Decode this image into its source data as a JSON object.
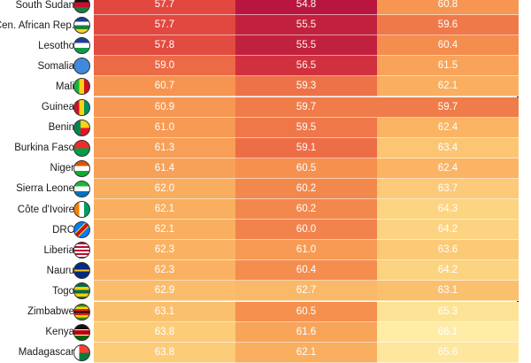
{
  "chart_data": {
    "type": "table",
    "rows": [
      {
        "country": "South Sudan",
        "values": [
          "57.7",
          "54.8",
          "60.8"
        ],
        "flag": "south-sudan-flag"
      },
      {
        "country": "Cen. African Rep.",
        "values": [
          "57.7",
          "55.5",
          "59.6"
        ],
        "flag": "car-flag"
      },
      {
        "country": "Lesotho",
        "values": [
          "57.8",
          "55.5",
          "60.4"
        ],
        "flag": "lesotho-flag"
      },
      {
        "country": "Somalia",
        "values": [
          "59.0",
          "56.5",
          "61.5"
        ],
        "flag": "somalia-flag"
      },
      {
        "country": "Mali",
        "values": [
          "60.7",
          "59.3",
          "62.1"
        ],
        "flag": "mali-flag"
      },
      {
        "country": "Guinea",
        "values": [
          "60.9",
          "59.7",
          "59.7"
        ],
        "flag": "guinea-flag"
      },
      {
        "country": "Benin",
        "values": [
          "61.0",
          "59.5",
          "62.4"
        ],
        "flag": "benin-flag"
      },
      {
        "country": "Burkina Faso",
        "values": [
          "61.3",
          "59.1",
          "63.4"
        ],
        "flag": "burkina-faso-flag"
      },
      {
        "country": "Niger",
        "values": [
          "61.4",
          "60.5",
          "62.4"
        ],
        "flag": "niger-flag"
      },
      {
        "country": "Sierra Leone",
        "values": [
          "62.0",
          "60.2",
          "63.7"
        ],
        "flag": "sierra-leone-flag"
      },
      {
        "country": "Côte d'Ivoire",
        "values": [
          "62.1",
          "60.2",
          "64.3"
        ],
        "flag": "cote-divoire-flag"
      },
      {
        "country": "DRC",
        "values": [
          "62.1",
          "60.0",
          "64.2"
        ],
        "flag": "drc-flag"
      },
      {
        "country": "Liberia",
        "values": [
          "62.3",
          "61.0",
          "63.6"
        ],
        "flag": "liberia-flag"
      },
      {
        "country": "Nauru",
        "values": [
          "62.3",
          "60.4",
          "64.2"
        ],
        "flag": "nauru-flag"
      },
      {
        "country": "Togo",
        "values": [
          "62.9",
          "62.7",
          "63.1"
        ],
        "flag": "togo-flag"
      },
      {
        "country": "Zimbabwe",
        "values": [
          "63.1",
          "60.5",
          "65.3"
        ],
        "flag": "zimbabwe-flag"
      },
      {
        "country": "Kenya",
        "values": [
          "63.8",
          "61.6",
          "66.1"
        ],
        "flag": "kenya-flag"
      },
      {
        "country": "Madagascar",
        "values": [
          "63.8",
          "62.1",
          "65.6"
        ],
        "flag": "madagascar-flag"
      }
    ],
    "color_scale": [
      "#b5123f",
      "#c9283e",
      "#e0433f",
      "#ec6a46",
      "#f5904f",
      "#f9ad5e",
      "#fcc774",
      "#fde08f",
      "#fff0b0"
    ]
  }
}
